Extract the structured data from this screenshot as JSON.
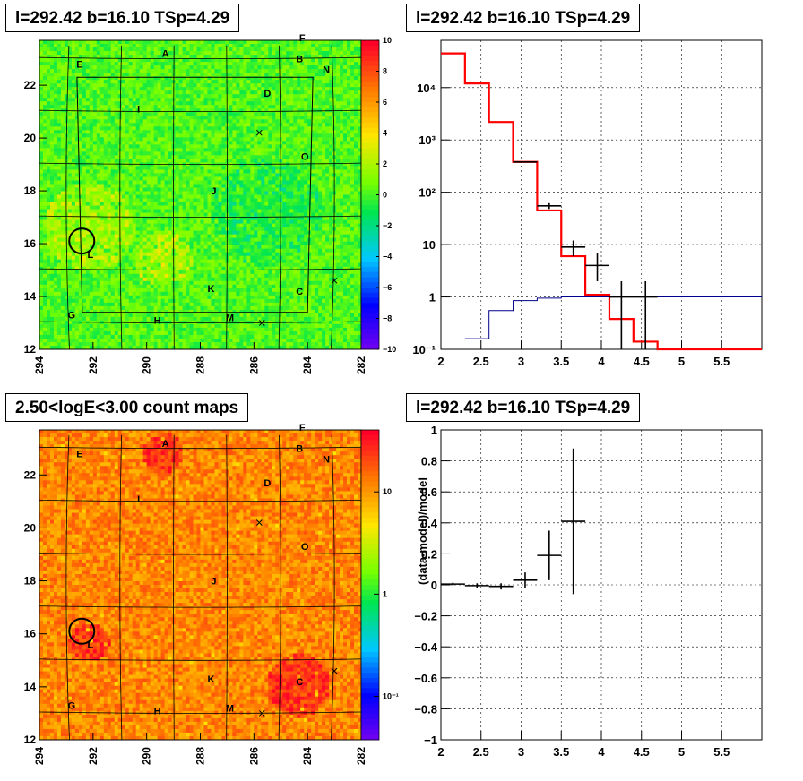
{
  "panels": {
    "p1_title": "l=292.42 b=16.10 TSp=4.29",
    "p2_title": "l=292.42 b=16.10 TSp=4.29",
    "p3_title": "2.50<logE<3.00 count maps",
    "p4_title": "l=292.42 b=16.10 TSp=4.29"
  },
  "colors": {
    "model": "#ff0000",
    "background": "#00008b",
    "data": "#000000"
  },
  "chart_data": [
    {
      "type": "heatmap",
      "title": "l=292.42 b=16.10 TSp=4.29",
      "xlim": [
        294,
        282
      ],
      "ylim": [
        12,
        23.7
      ],
      "x_ticks": [
        "294",
        "292",
        "290",
        "288",
        "286",
        "284",
        "282"
      ],
      "y_ticks": [
        "12",
        "14",
        "16",
        "18",
        "20",
        "22"
      ],
      "colorbar_ticks": [
        "10",
        "8",
        "6",
        "4",
        "2",
        "0",
        "−2",
        "−4",
        "−6",
        "−8",
        "−10"
      ],
      "colorbar_range": [
        -10,
        10
      ],
      "source_circle": {
        "l": 292.42,
        "b": 16.1
      },
      "labels": [
        {
          "text": "A",
          "l": 289.3,
          "b": 23.2
        },
        {
          "text": "B",
          "l": 284.3,
          "b": 23.0
        },
        {
          "text": "F",
          "l": 284.2,
          "b": 23.8
        },
        {
          "text": "E",
          "l": 292.5,
          "b": 22.8
        },
        {
          "text": "N",
          "l": 283.3,
          "b": 22.6
        },
        {
          "text": "D",
          "l": 285.5,
          "b": 21.7
        },
        {
          "text": "I",
          "l": 290.3,
          "b": 21.1
        },
        {
          "text": "O",
          "l": 284.1,
          "b": 19.3
        },
        {
          "text": "J",
          "l": 287.5,
          "b": 18.0
        },
        {
          "text": "L",
          "l": 292.1,
          "b": 15.6
        },
        {
          "text": "K",
          "l": 287.6,
          "b": 14.3
        },
        {
          "text": "C",
          "l": 284.3,
          "b": 14.2
        },
        {
          "text": "G",
          "l": 292.8,
          "b": 13.3
        },
        {
          "text": "H",
          "l": 289.6,
          "b": 13.1
        },
        {
          "text": "M",
          "l": 286.9,
          "b": 13.2
        }
      ]
    },
    {
      "type": "line",
      "title": "l=292.42 b=16.10 TSp=4.29",
      "yscale": "log",
      "xlim": [
        2,
        6
      ],
      "ylim": [
        0.1,
        80000
      ],
      "x_ticks": [
        "2",
        "2.5",
        "3",
        "3.5",
        "4",
        "4.5",
        "5",
        "5.5"
      ],
      "y_ticks": [
        "10⁻¹",
        "1",
        "10",
        "10²",
        "10³",
        "10⁴"
      ],
      "grid": true,
      "series": [
        {
          "style": "histogram",
          "edges": [
            2.0,
            2.3,
            2.6,
            2.9,
            3.2,
            3.5,
            3.8,
            4.1,
            4.4,
            4.7,
            6.0
          ],
          "values": [
            45000,
            12000,
            2200,
            380,
            45,
            6,
            1.1,
            0.38,
            0.14,
            0.1
          ]
        },
        {
          "style": "histogram",
          "edges": [
            2.3,
            2.6,
            2.9,
            3.2,
            3.5,
            3.8,
            4.1,
            4.4,
            4.7,
            6.0
          ],
          "values": [
            0.16,
            0.55,
            0.85,
            0.95,
            1.0,
            1.0,
            1.0,
            1.0,
            1.0
          ]
        },
        {
          "style": "errorbars",
          "points": [
            {
              "x": 3.05,
              "y": 380,
              "xerr": 0.15,
              "ylo": 370,
              "yhi": 390
            },
            {
              "x": 3.35,
              "y": 55,
              "xerr": 0.15,
              "ylo": 48,
              "yhi": 62
            },
            {
              "x": 3.65,
              "y": 9,
              "xerr": 0.15,
              "ylo": 6,
              "yhi": 12
            },
            {
              "x": 3.95,
              "y": 4,
              "xerr": 0.15,
              "ylo": 2,
              "yhi": 7
            },
            {
              "x": 4.25,
              "y": 1,
              "xerr": 0.15,
              "ylo": 0.1,
              "yhi": 2
            },
            {
              "x": 4.55,
              "y": 1,
              "xerr": 0.15,
              "ylo": 0.1,
              "yhi": 2
            }
          ]
        }
      ]
    },
    {
      "type": "heatmap",
      "title": "2.50<logE<3.00 count maps",
      "xlim": [
        294,
        282
      ],
      "ylim": [
        12,
        23.7
      ],
      "x_ticks": [
        "294",
        "292",
        "290",
        "288",
        "286",
        "284",
        "282"
      ],
      "y_ticks": [
        "12",
        "14",
        "16",
        "18",
        "20",
        "22"
      ],
      "colorbar_ticks": [
        "10",
        "1",
        "10⁻¹"
      ],
      "colorbar_scale": "log",
      "source_circle": {
        "l": 292.42,
        "b": 16.1
      },
      "labels": [
        {
          "text": "A",
          "l": 289.3,
          "b": 23.2
        },
        {
          "text": "B",
          "l": 284.3,
          "b": 23.0
        },
        {
          "text": "F",
          "l": 284.2,
          "b": 23.8
        },
        {
          "text": "E",
          "l": 292.5,
          "b": 22.8
        },
        {
          "text": "N",
          "l": 283.3,
          "b": 22.6
        },
        {
          "text": "D",
          "l": 285.5,
          "b": 21.7
        },
        {
          "text": "I",
          "l": 290.3,
          "b": 21.1
        },
        {
          "text": "O",
          "l": 284.1,
          "b": 19.3
        },
        {
          "text": "J",
          "l": 287.5,
          "b": 18.0
        },
        {
          "text": "L",
          "l": 292.1,
          "b": 15.6
        },
        {
          "text": "K",
          "l": 287.6,
          "b": 14.3
        },
        {
          "text": "C",
          "l": 284.3,
          "b": 14.2
        },
        {
          "text": "G",
          "l": 292.8,
          "b": 13.3
        },
        {
          "text": "H",
          "l": 289.6,
          "b": 13.1
        },
        {
          "text": "M",
          "l": 286.9,
          "b": 13.2
        }
      ]
    },
    {
      "type": "scatter",
      "title": "l=292.42 b=16.10 TSp=4.29",
      "ylabel": "(data-model)/model",
      "xlim": [
        2,
        6
      ],
      "ylim": [
        -1,
        1
      ],
      "x_ticks": [
        "2",
        "2.5",
        "3",
        "3.5",
        "4",
        "4.5",
        "5",
        "5.5"
      ],
      "y_ticks": [
        "−1",
        "−0.8",
        "−0.6",
        "−0.4",
        "−0.2",
        "0",
        "0.2",
        "0.4",
        "0.6",
        "0.8",
        "1"
      ],
      "grid": true,
      "points": [
        {
          "x": 2.15,
          "y": 0.005,
          "xerr": 0.15,
          "yerr": 0.01
        },
        {
          "x": 2.45,
          "y": -0.005,
          "xerr": 0.15,
          "yerr": 0.015
        },
        {
          "x": 2.75,
          "y": -0.01,
          "xerr": 0.15,
          "yerr": 0.02
        },
        {
          "x": 3.05,
          "y": 0.03,
          "xerr": 0.15,
          "yerr": 0.05
        },
        {
          "x": 3.35,
          "y": 0.19,
          "xerr": 0.15,
          "ylo": 0.03,
          "yhi": 0.35
        },
        {
          "x": 3.65,
          "y": 0.41,
          "xerr": 0.15,
          "ylo": -0.06,
          "yhi": 0.88
        }
      ]
    }
  ]
}
